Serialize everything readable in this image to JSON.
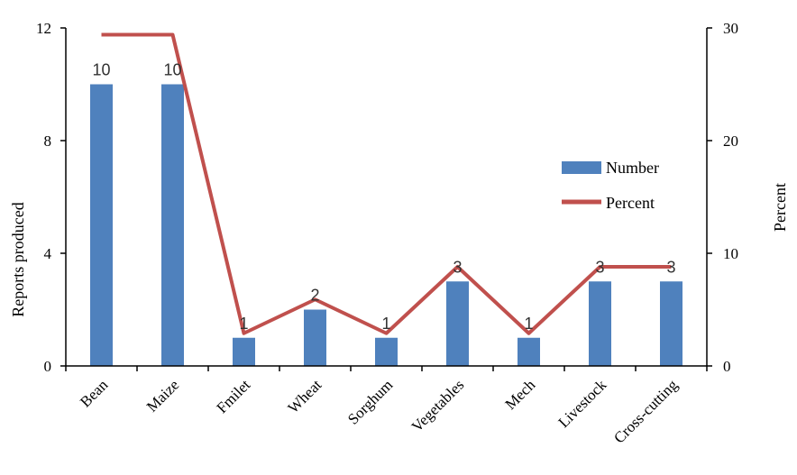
{
  "chart_data": {
    "type": "bar",
    "categories": [
      "Bean",
      "Maize",
      "Fmilet",
      "Wheat",
      "Sorghum",
      "Vegetables",
      "Mech",
      "Livestock",
      "Cross-cutting"
    ],
    "series": [
      {
        "name": "Number",
        "type": "bar",
        "axis": "left",
        "color": "#4f81bd",
        "values": [
          10,
          10,
          1,
          2,
          1,
          3,
          1,
          3,
          3
        ],
        "data_labels": [
          "10",
          "10",
          "1",
          "2",
          "1",
          "3",
          "1",
          "3",
          "3"
        ]
      },
      {
        "name": "Percent",
        "type": "line",
        "axis": "right",
        "color": "#c0504d",
        "values": [
          29.4,
          29.4,
          2.9,
          5.9,
          2.9,
          8.8,
          2.9,
          8.8,
          8.8
        ]
      }
    ],
    "ylabel": "Reports produced",
    "y2label": "Percent",
    "ylim": [
      0,
      12
    ],
    "y2lim": [
      0,
      30
    ],
    "yticks": [
      "0",
      "4",
      "8",
      "12"
    ],
    "y2ticks": [
      "0",
      "10",
      "20",
      "30"
    ],
    "grid": false,
    "legend_position": "right"
  }
}
